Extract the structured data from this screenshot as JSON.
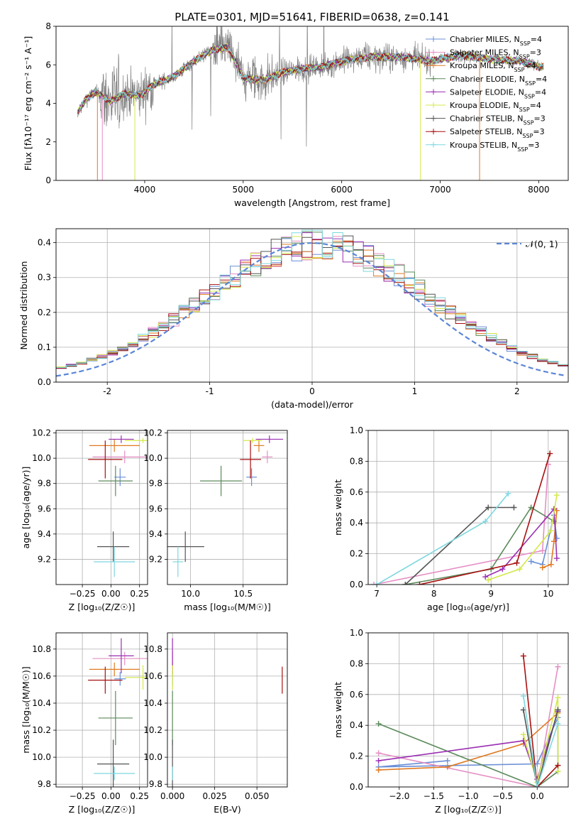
{
  "figure_title": "PLATE=0301, MJD=51641, FIBERID=0638, z=0.141",
  "colors": {
    "Chabrier MILES": "#6a8fd6",
    "Salpeter MILES": "#e58fc4",
    "Kroupa MILES": "#e07a22",
    "Chabrier ELODIE": "#5b8a5b",
    "Salpeter ELODIE": "#9b2fb3",
    "Kroupa ELODIE": "#d4e84a",
    "Chabrier STELIB": "#555555",
    "Salpeter STELIB": "#a81010",
    "Kroupa STELIB": "#7fd8e0",
    "data": "#808080",
    "normal": "#5b86d6"
  },
  "chart_data": [
    {
      "id": "spectrum",
      "type": "line",
      "xlabel": "wavelength [Angstrom, rest frame]",
      "ylabel": "Flux [fλ10⁻¹⁷ erg cm⁻² s⁻¹ A⁻¹]",
      "xlim": [
        3100,
        8300
      ],
      "ylim": [
        0,
        8
      ],
      "xticks": [
        4000,
        5000,
        6000,
        7000,
        8000
      ],
      "yticks": [
        0,
        2,
        4,
        6,
        8
      ],
      "grid": false,
      "legend_position": "top-right",
      "model_anchor_points": {
        "x": [
          3320,
          3400,
          3500,
          3650,
          3800,
          3950,
          4100,
          4300,
          4500,
          4700,
          4850,
          5000,
          5200,
          5400,
          5600,
          5800,
          6000,
          6300,
          6600,
          6900,
          7200,
          7500,
          7800,
          8000
        ],
        "y": [
          3.5,
          4.2,
          4.6,
          4.1,
          4.5,
          4.4,
          5.0,
          5.4,
          6.2,
          6.8,
          6.9,
          5.3,
          5.2,
          5.6,
          5.8,
          5.9,
          6.2,
          6.4,
          6.4,
          6.2,
          6.5,
          6.3,
          6.2,
          5.9
        ]
      },
      "legend": [
        {
          "label": "Chabrier MILES, N",
          "sub": "SSP",
          "suffix": "=4"
        },
        {
          "label": "Salpeter MILES, N",
          "sub": "SSP",
          "suffix": "=3"
        },
        {
          "label": "Kroupa MILES, N",
          "sub": "SSP",
          "suffix": "=4"
        },
        {
          "label": "Chabrier ELODIE, N",
          "sub": "SSP",
          "suffix": "=4"
        },
        {
          "label": "Salpeter ELODIE, N",
          "sub": "SSP",
          "suffix": "=4"
        },
        {
          "label": "Kroupa ELODIE, N",
          "sub": "SSP",
          "suffix": "=4"
        },
        {
          "label": "Chabrier STELIB, N",
          "sub": "SSP",
          "suffix": "=3"
        },
        {
          "label": "Salpeter STELIB, N",
          "sub": "SSP",
          "suffix": "=3"
        },
        {
          "label": "Kroupa STELIB, N",
          "sub": "SSP",
          "suffix": "=3"
        }
      ]
    },
    {
      "id": "residuals",
      "type": "histogram",
      "xlabel": "(data-model)/error",
      "ylabel": "Normed distribution",
      "xlim": [
        -2.5,
        2.5
      ],
      "ylim": [
        0,
        0.44
      ],
      "xticks": [
        -2,
        -1,
        0,
        1,
        2
      ],
      "yticks": [
        0.0,
        0.1,
        0.2,
        0.3,
        0.4
      ],
      "grid": true,
      "legend_position": "top-right",
      "normal_curve_label": "𝒩(0, 1)",
      "bin_width": 0.1
    },
    {
      "id": "z_age",
      "type": "errorbar",
      "xlabel": "Z [log₁₀(Z/Z☉)]",
      "ylabel": "age  [log₁₀(age/yr)]",
      "xlim": [
        -0.48,
        0.32
      ],
      "ylim": [
        9.0,
        10.22
      ],
      "xticks": [
        -0.25,
        0.0,
        0.25
      ],
      "xticklabels": [
        "−0.25",
        "0.00",
        "0.25"
      ],
      "yticks": [
        9.2,
        9.4,
        9.6,
        9.8,
        10.0,
        10.2
      ],
      "grid": true
    },
    {
      "id": "mass_age",
      "type": "errorbar",
      "xlabel": "mass [log₁₀(M/M☉)]",
      "ylabel": "",
      "xlim": [
        9.78,
        10.92
      ],
      "ylim": [
        9.0,
        10.22
      ],
      "xticks": [
        10.0,
        10.5
      ],
      "xticklabels": [
        "10.0",
        "10.5"
      ],
      "yticks": [
        9.2,
        9.4,
        9.6,
        9.8,
        10.0,
        10.2
      ],
      "grid": true
    },
    {
      "id": "age_weight",
      "type": "line",
      "xlabel": "age  [log₁₀(age/yr)]",
      "ylabel": "mass weight",
      "xlim": [
        6.85,
        10.35
      ],
      "ylim": [
        0,
        1.0
      ],
      "xticks": [
        7,
        8,
        9,
        10
      ],
      "yticks": [
        0.0,
        0.2,
        0.4,
        0.6,
        0.8,
        1.0
      ],
      "grid": true
    },
    {
      "id": "z_mass",
      "type": "errorbar",
      "xlabel": "Z [log₁₀(Z/Z☉)]",
      "ylabel": "mass [log₁₀(M/M☉)]",
      "xlim": [
        -0.48,
        0.32
      ],
      "ylim": [
        9.78,
        10.92
      ],
      "xticks": [
        -0.25,
        0.0,
        0.25
      ],
      "xticklabels": [
        "−0.25",
        "0.00",
        "0.25"
      ],
      "yticks": [
        9.8,
        10.0,
        10.2,
        10.4,
        10.6,
        10.8
      ],
      "grid": true
    },
    {
      "id": "ebv_mass",
      "type": "errorbar",
      "xlabel": "E(B-V)",
      "ylabel": "",
      "xlim": [
        -0.003,
        0.068
      ],
      "ylim": [
        9.78,
        10.92
      ],
      "xticks": [
        0.0,
        0.025,
        0.05
      ],
      "xticklabels": [
        "0.000",
        "0.025",
        "0.050"
      ],
      "yticks": [
        9.8,
        10.0,
        10.2,
        10.4,
        10.6,
        10.8
      ],
      "grid": true
    },
    {
      "id": "z_weight",
      "type": "line",
      "xlabel": "Z [log₁₀(Z/Z☉)]",
      "ylabel": "mass weight",
      "xlim": [
        -2.45,
        0.45
      ],
      "ylim": [
        0,
        1.0
      ],
      "xticks": [
        -2.0,
        -1.5,
        -1.0,
        -0.5,
        0.0
      ],
      "xticklabels": [
        "−2.0",
        "−1.5",
        "−1.0",
        "−0.5",
        "0.0"
      ],
      "yticks": [
        0.0,
        0.2,
        0.4,
        0.6,
        0.8,
        1.0
      ],
      "grid": true
    }
  ],
  "fits": [
    {
      "name": "Chabrier MILES",
      "Z": 0.08,
      "Zerr": 0.05,
      "age": 9.85,
      "ageErr": 0.07,
      "mass": 10.58,
      "massErr": 0.05,
      "ebv": 0.0,
      "ebvErr": 0.0,
      "ages": [
        9.7,
        9.9,
        10.1,
        10.15
      ],
      "weights": [
        0.15,
        0.13,
        0.45,
        0.3
      ],
      "Zs": [
        -1.3,
        -2.3,
        0.0,
        0.3
      ],
      "zweights": [
        0.17,
        0.13,
        0.15,
        0.45
      ]
    },
    {
      "name": "Salpeter MILES",
      "Z": 0.12,
      "Zerr": 0.28,
      "age": 10.01,
      "ageErr": 0.05,
      "mass": 10.73,
      "massErr": 0.05,
      "ebv": 0.0,
      "ebvErr": 0.0,
      "ages": [
        6.95,
        9.9,
        10.0
      ],
      "weights": [
        0.0,
        0.22,
        0.78
      ],
      "Zs": [
        -2.3,
        0.0,
        0.3
      ],
      "zweights": [
        0.22,
        0.0,
        0.78
      ]
    },
    {
      "name": "Kroupa MILES",
      "Z": 0.03,
      "Zerr": 0.22,
      "age": 10.1,
      "ageErr": 0.05,
      "mass": 10.65,
      "massErr": 0.05,
      "ebv": 0.0,
      "ebvErr": 0.0,
      "ages": [
        9.9,
        10.05,
        10.1,
        10.15
      ],
      "weights": [
        0.11,
        0.13,
        0.28,
        0.48
      ],
      "Zs": [
        -2.3,
        -1.3,
        -0.2,
        0.3
      ],
      "zweights": [
        0.11,
        0.13,
        0.28,
        0.48
      ]
    },
    {
      "name": "Chabrier ELODIE",
      "Z": 0.04,
      "Zerr": 0.15,
      "age": 9.82,
      "ageErr": 0.12,
      "mass": 10.29,
      "massErr": 0.2,
      "ebv": 0.0,
      "ebvErr": 0.0,
      "ages": [
        7.5,
        9.0,
        9.7,
        10.1
      ],
      "weights": [
        0.0,
        0.1,
        0.5,
        0.41
      ],
      "Zs": [
        -2.3,
        0.0,
        0.3,
        0.3
      ],
      "zweights": [
        0.41,
        0.0,
        0.1,
        0.5
      ]
    },
    {
      "name": "Salpeter ELODIE",
      "Z": 0.09,
      "Zerr": 0.11,
      "age": 10.15,
      "ageErr": 0.03,
      "mass": 10.75,
      "massErr": 0.13,
      "ebv": 0.0,
      "ebvErr": 0.0,
      "ages": [
        8.9,
        9.2,
        10.1,
        10.15
      ],
      "weights": [
        0.05,
        0.1,
        0.49,
        0.17
      ],
      "Zs": [
        -2.3,
        -0.2,
        0.0,
        0.3
      ],
      "zweights": [
        0.17,
        0.3,
        0.05,
        0.49
      ]
    },
    {
      "name": "Kroupa ELODIE",
      "Z": 0.28,
      "Zerr": 0.16,
      "age": 10.14,
      "ageErr": 0.02,
      "mass": 10.59,
      "massErr": 0.09,
      "ebv": 0.0,
      "ebvErr": 0.0,
      "ages": [
        8.95,
        9.5,
        10.05,
        10.15
      ],
      "weights": [
        0.03,
        0.1,
        0.35,
        0.58
      ],
      "Zs": [
        -0.2,
        0.0,
        0.3,
        0.3
      ],
      "zweights": [
        0.34,
        0.03,
        0.58,
        0.1
      ]
    },
    {
      "name": "Chabrier STELIB",
      "Z": 0.02,
      "Zerr": 0.14,
      "age": 9.3,
      "ageErr": 0.12,
      "mass": 9.95,
      "massErr": 0.18,
      "ebv": 0.0,
      "ebvErr": 0.0,
      "ages": [
        7.5,
        8.95,
        9.4
      ],
      "weights": [
        0.0,
        0.5,
        0.5
      ],
      "Zs": [
        -0.2,
        0.0,
        0.3
      ],
      "zweights": [
        0.5,
        0.0,
        0.5
      ]
    },
    {
      "name": "Salpeter STELIB",
      "Z": -0.05,
      "Zerr": 0.15,
      "age": 9.99,
      "ageErr": 0.15,
      "mass": 10.57,
      "massErr": 0.1,
      "ebv": 0.065,
      "ebvErr": 0.0,
      "ages": [
        7.75,
        9.45,
        10.03
      ],
      "weights": [
        0.0,
        0.14,
        0.85
      ],
      "Zs": [
        -0.2,
        0.0,
        0.3
      ],
      "zweights": [
        0.85,
        0.0,
        0.14
      ]
    },
    {
      "name": "Kroupa STELIB",
      "Z": 0.03,
      "Zerr": 0.18,
      "age": 9.18,
      "ageErr": 0.12,
      "mass": 9.88,
      "massErr": 0.05,
      "ebv": 0.0,
      "ebvErr": 0.0,
      "ages": [
        7.0,
        8.9,
        9.3
      ],
      "weights": [
        0.0,
        0.41,
        0.59
      ],
      "Zs": [
        -0.2,
        0.0,
        0.3
      ],
      "zweights": [
        0.59,
        0.0,
        0.41
      ]
    }
  ]
}
